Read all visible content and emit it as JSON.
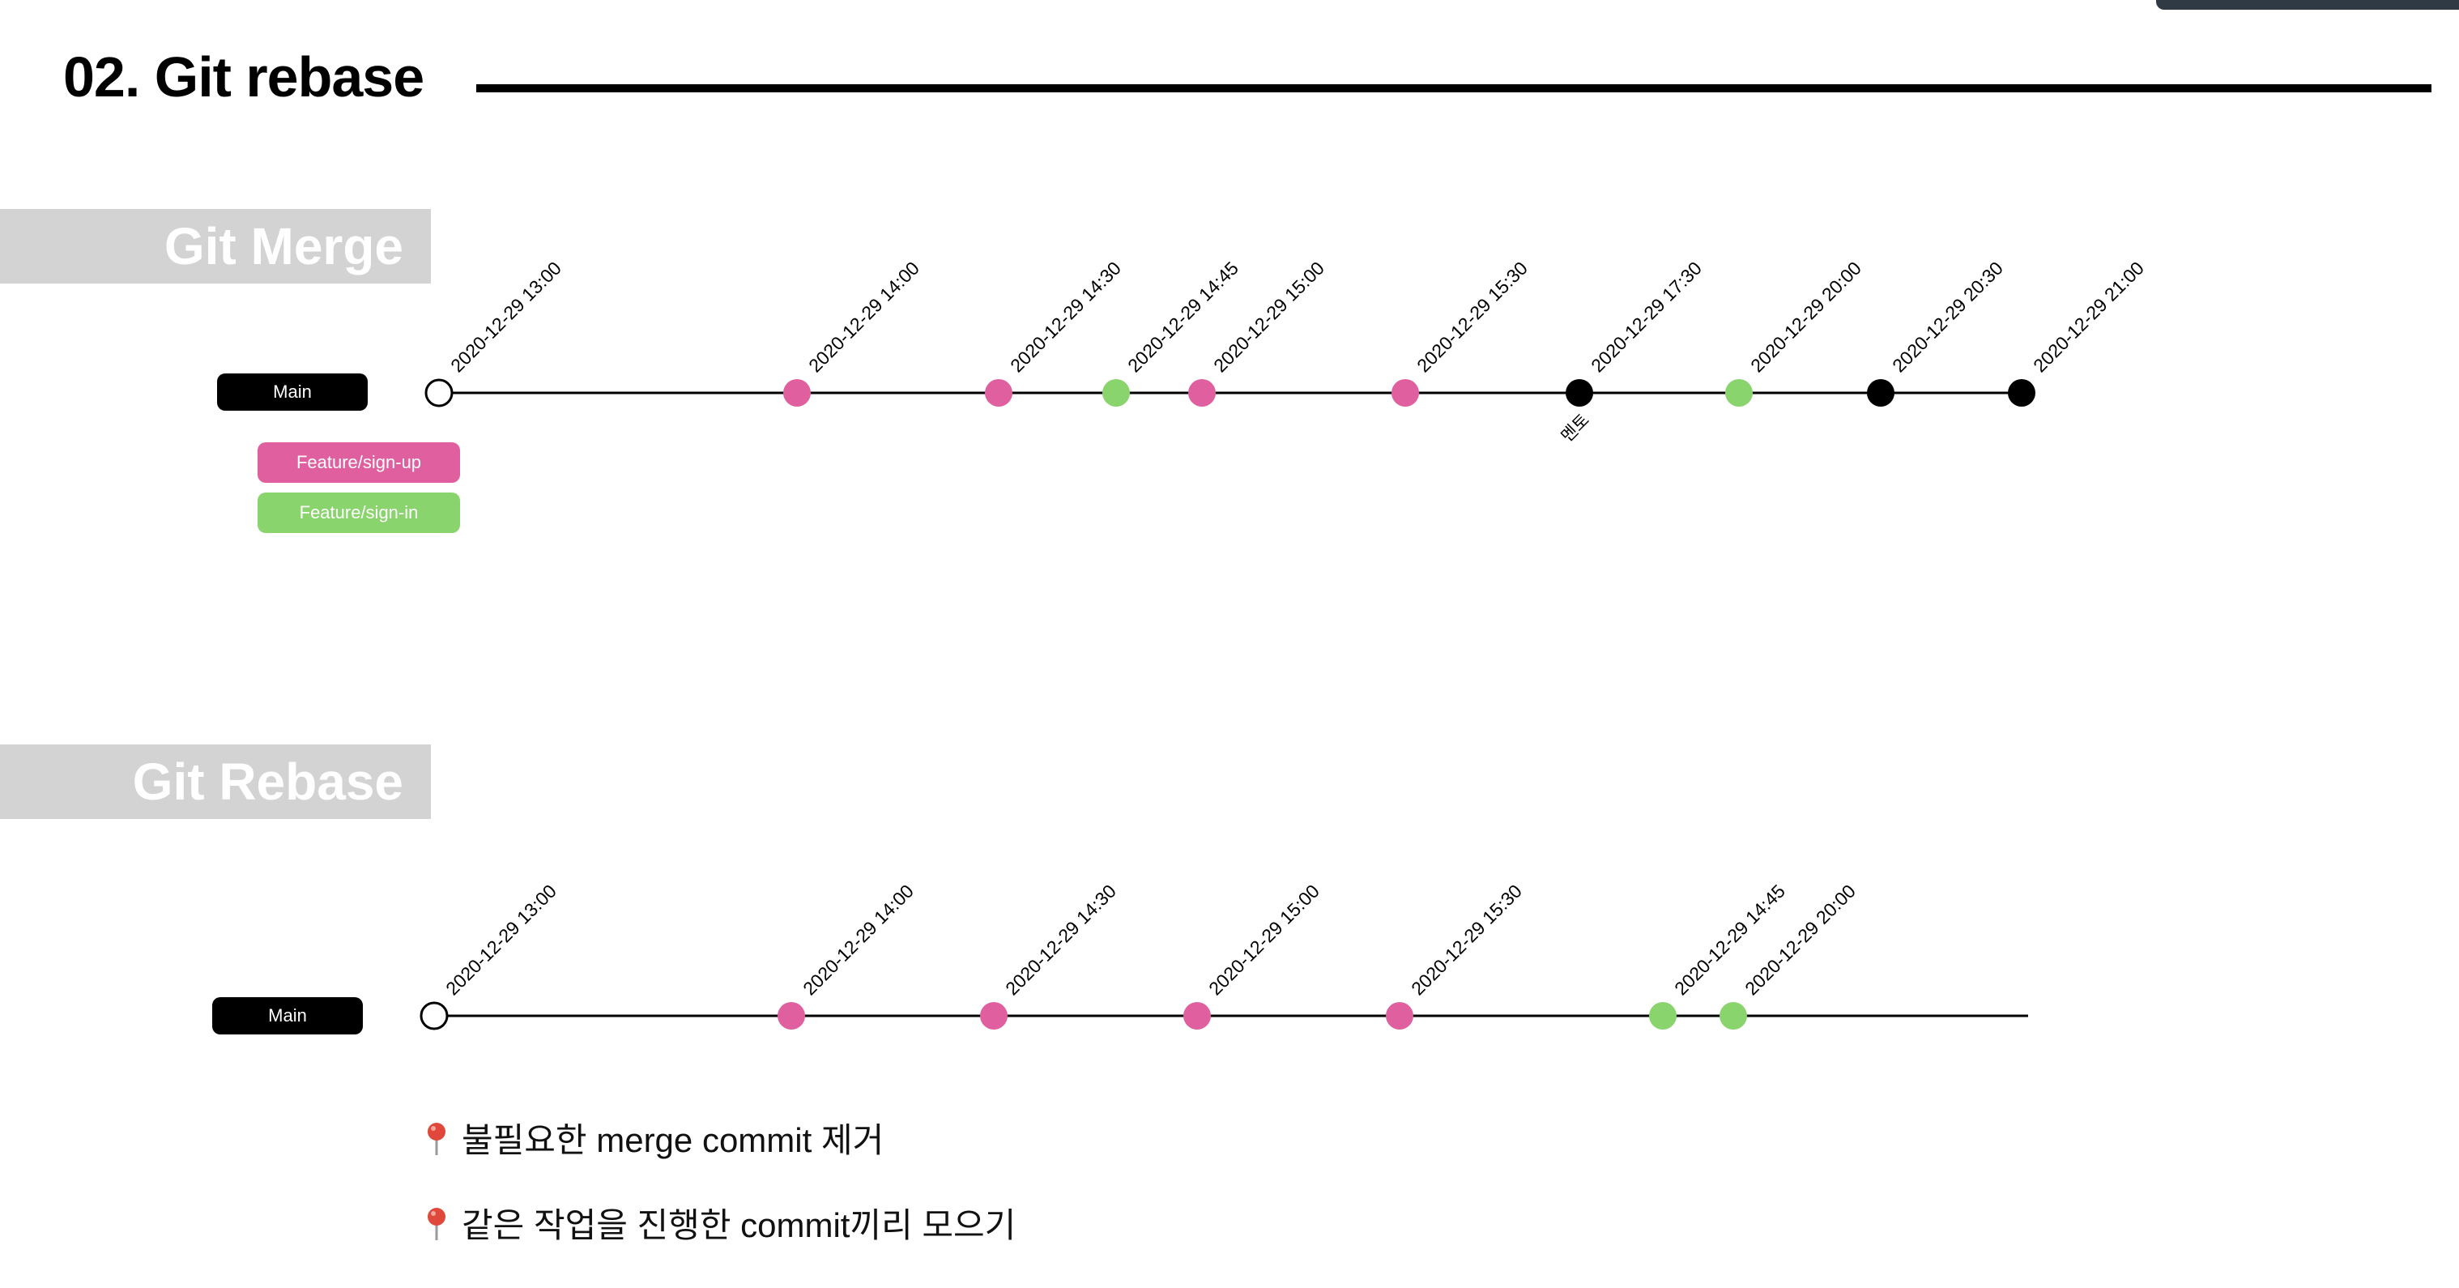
{
  "title": "02. Git rebase",
  "merge": {
    "banner": "Git Merge",
    "tags": {
      "main": "Main",
      "signup": "Feature/sign-up",
      "signin": "Feature/sign-in"
    },
    "branch_colors": {
      "main": "#000000",
      "signup": "#e0609f",
      "signin": "#8ad46d"
    },
    "commits": [
      {
        "label": "2020-12-29 13:00",
        "branch": "start"
      },
      {
        "label": "2020-12-29 14:00",
        "branch": "signup"
      },
      {
        "label": "2020-12-29 14:30",
        "branch": "signup"
      },
      {
        "label": "2020-12-29 14:45",
        "branch": "signin"
      },
      {
        "label": "2020-12-29 15:00",
        "branch": "signup"
      },
      {
        "label": "2020-12-29 15:30",
        "branch": "signup"
      },
      {
        "label": "2020-12-29 17:30",
        "branch": "main",
        "note": "멘토"
      },
      {
        "label": "2020-12-29 20:00",
        "branch": "signin"
      },
      {
        "label": "2020-12-29 20:30",
        "branch": "main"
      },
      {
        "label": "2020-12-29 21:00",
        "branch": "main"
      }
    ]
  },
  "rebase": {
    "banner": "Git Rebase",
    "tags": {
      "main": "Main"
    },
    "commits": [
      {
        "label": "2020-12-29 13:00",
        "branch": "start"
      },
      {
        "label": "2020-12-29 14:00",
        "branch": "signup"
      },
      {
        "label": "2020-12-29 14:30",
        "branch": "signup"
      },
      {
        "label": "2020-12-29 15:00",
        "branch": "signup"
      },
      {
        "label": "2020-12-29 15:30",
        "branch": "signup"
      },
      {
        "label": "2020-12-29 14:45",
        "branch": "signin"
      },
      {
        "label": "2020-12-29 20:00",
        "branch": "signin"
      }
    ]
  },
  "notes": [
    {
      "icon": "pushpin-icon",
      "text": "불필요한 merge commit 제거"
    },
    {
      "icon": "pushpin-icon",
      "text": "같은 작업을 진행한 commit끼리 모으기"
    }
  ]
}
